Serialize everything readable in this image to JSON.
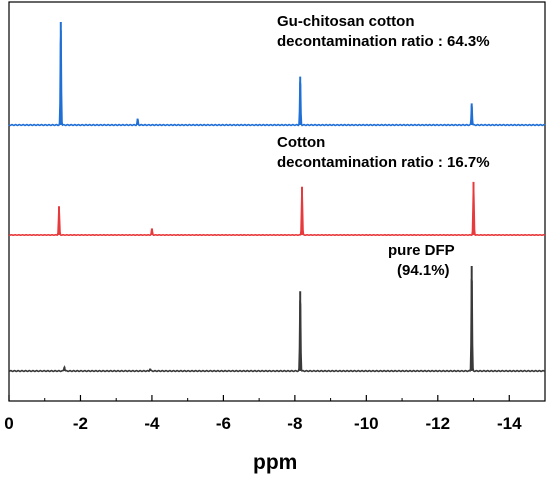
{
  "chart_data": {
    "type": "line",
    "xlabel": "ppm",
    "xlim": [
      0,
      -15
    ],
    "x_ticks": [
      "0",
      "-2",
      "-4",
      "-6",
      "-8",
      "-10",
      "-12",
      "-14"
    ],
    "tick_values": [
      0,
      -2,
      -4,
      -6,
      -8,
      -10,
      -12,
      -14
    ],
    "series": [
      {
        "color": "#1f6fd6",
        "annotation": [
          "Gu-chitosan cotton",
          "decontamination ratio : 64.3%"
        ],
        "peaks": [
          {
            "x": -1.45,
            "y": 1.0
          },
          {
            "x": -3.6,
            "y": 0.06
          },
          {
            "x": -8.15,
            "y": 0.47
          },
          {
            "x": -12.95,
            "y": 0.21
          }
        ]
      },
      {
        "color": "#e8393c",
        "annotation": [
          "Cotton",
          "decontamination ratio : 16.7%"
        ],
        "peaks": [
          {
            "x": -1.4,
            "y": 0.54
          },
          {
            "x": -4.0,
            "y": 0.12
          },
          {
            "x": -8.2,
            "y": 0.91
          },
          {
            "x": -13.0,
            "y": 1.0
          }
        ]
      },
      {
        "color": "#3a3a3a",
        "annotation": [
          "pure DFP",
          "(94.1%)"
        ],
        "peaks": [
          {
            "x": -1.55,
            "y": 0.04
          },
          {
            "x": -3.95,
            "y": 0.02
          },
          {
            "x": -8.15,
            "y": 0.76
          },
          {
            "x": -12.95,
            "y": 1.0
          }
        ]
      }
    ]
  }
}
